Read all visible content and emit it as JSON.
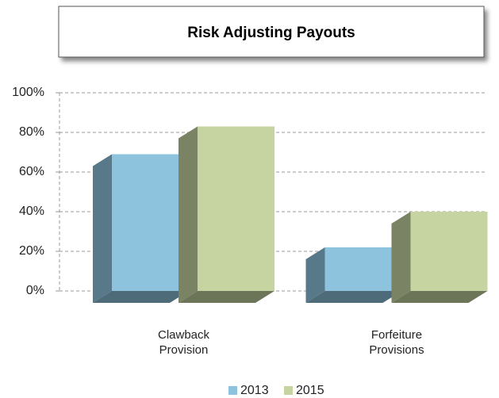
{
  "chart_data": {
    "type": "bar3d",
    "title": "Risk Adjusting Payouts",
    "categories": [
      "Clawback Provision",
      "Forfeiture Provisions"
    ],
    "series": [
      {
        "name": "2013",
        "color": "#8ec3dd",
        "values": [
          69,
          22
        ]
      },
      {
        "name": "2015",
        "color": "#c5d4a0",
        "values": [
          83,
          40
        ]
      }
    ],
    "ylim": [
      0,
      100
    ],
    "yticks": [
      {
        "value": 0,
        "label": "0%"
      },
      {
        "value": 20,
        "label": "20%"
      },
      {
        "value": 40,
        "label": "40%"
      },
      {
        "value": 60,
        "label": "60%"
      },
      {
        "value": 80,
        "label": "80%"
      },
      {
        "value": 100,
        "label": "100%"
      }
    ],
    "grid": true,
    "legend": "bottom"
  }
}
